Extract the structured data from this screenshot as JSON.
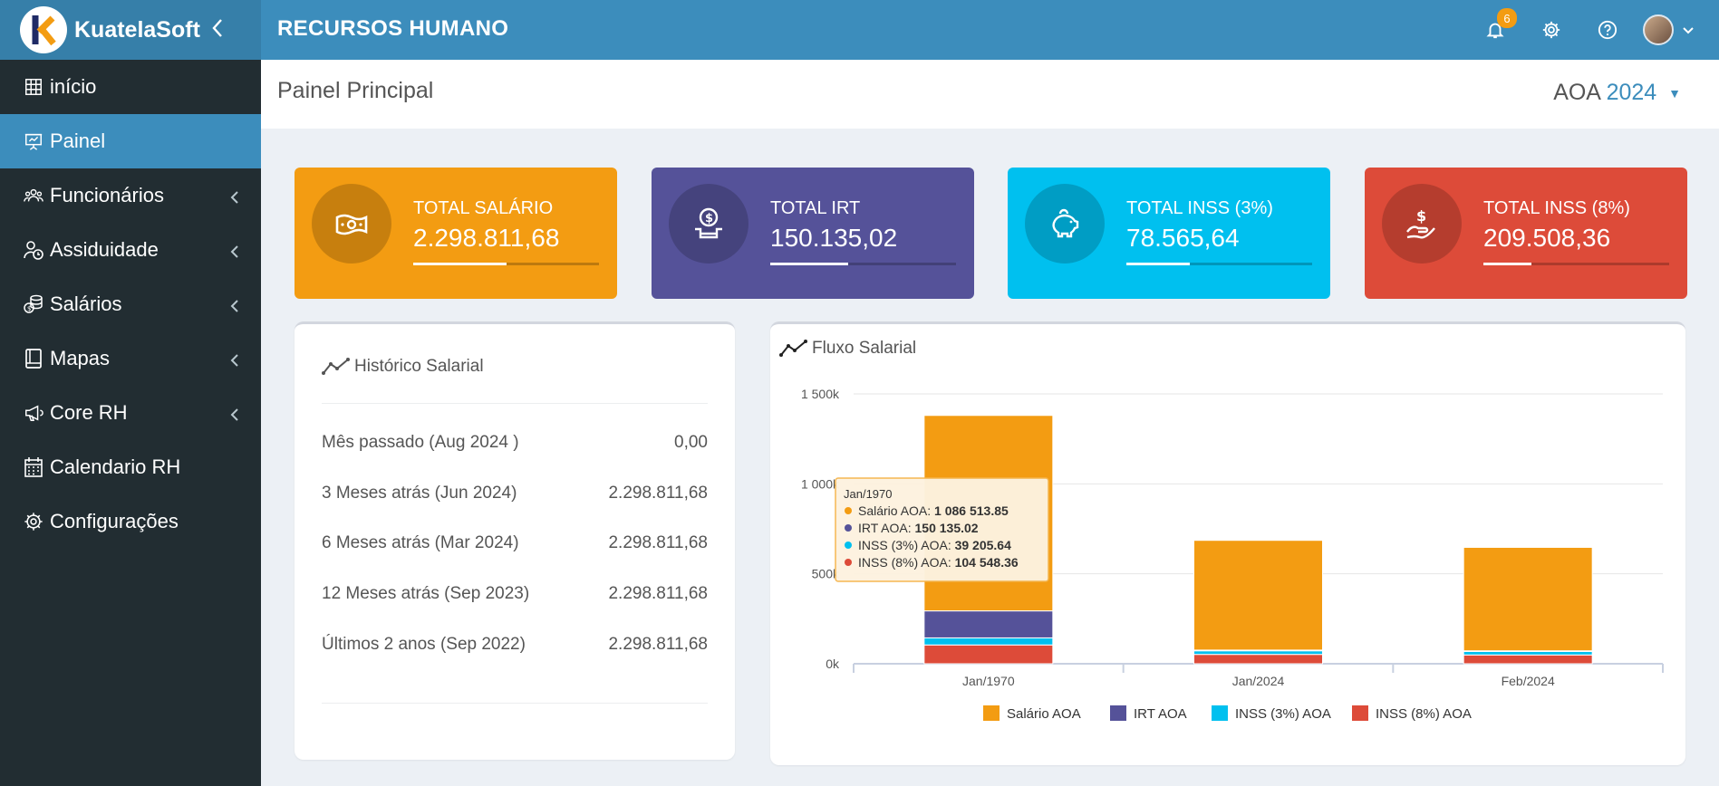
{
  "brand": {
    "name": "KuatelaSoft",
    "logo_letter": "K"
  },
  "header": {
    "app_title": "RECURSOS HUMANO",
    "notifications_count": "6"
  },
  "sidebar": {
    "items": [
      {
        "label": "início",
        "icon": "grid-icon",
        "active": false,
        "expandable": false
      },
      {
        "label": "Painel",
        "icon": "presentation-icon",
        "active": true,
        "expandable": false
      },
      {
        "label": "Funcionários",
        "icon": "users-icon",
        "active": false,
        "expandable": true
      },
      {
        "label": "Assiduidade",
        "icon": "user-clock-icon",
        "active": false,
        "expandable": true
      },
      {
        "label": "Salários",
        "icon": "coins-icon",
        "active": false,
        "expandable": true
      },
      {
        "label": "Mapas",
        "icon": "book-icon",
        "active": false,
        "expandable": true
      },
      {
        "label": "Core RH",
        "icon": "megaphone-icon",
        "active": false,
        "expandable": true
      },
      {
        "label": "Calendario RH",
        "icon": "calendar-icon",
        "active": false,
        "expandable": false
      },
      {
        "label": "Configurações",
        "icon": "gear-icon",
        "active": false,
        "expandable": false
      }
    ]
  },
  "page": {
    "title": "Painel Principal",
    "currency": "AOA",
    "year": "2024"
  },
  "stats": [
    {
      "label": "TOTAL SALÁRIO",
      "value": "2.298.811,68",
      "color": "#f39c12",
      "icon": "money-bill-icon",
      "progress": 0.5
    },
    {
      "label": "TOTAL IRT",
      "value": "150.135,02",
      "color": "#555299",
      "icon": "hand-coin-icon",
      "progress": 0.42
    },
    {
      "label": "TOTAL INSS (3%)",
      "value": "78.565,64",
      "color": "#00c0ef",
      "icon": "piggy-bank-icon",
      "progress": 0.34
    },
    {
      "label": "TOTAL INSS (8%)",
      "value": "209.508,36",
      "color": "#dd4b39",
      "icon": "hand-dollar-icon",
      "progress": 0.26
    }
  ],
  "history": {
    "title": "Histórico Salarial",
    "rows": [
      {
        "label": "Mês passado (Aug 2024 )",
        "value": "0,00"
      },
      {
        "label": "3 Meses atrás (Jun 2024)",
        "value": "2.298.811,68"
      },
      {
        "label": "6 Meses atrás (Mar 2024)",
        "value": "2.298.811,68"
      },
      {
        "label": "12 Meses atrás (Sep 2023)",
        "value": "2.298.811,68"
      },
      {
        "label": "Últimos 2 anos (Sep 2022)",
        "value": "2.298.811,68"
      }
    ]
  },
  "flow_panel": {
    "title": "Fluxo Salarial"
  },
  "chart_data": {
    "type": "bar",
    "stacked": true,
    "categories": [
      "Jan/1970",
      "Jan/2024",
      "Feb/2024"
    ],
    "series": [
      {
        "name": "Salário AOA",
        "color": "#f39c12",
        "values": [
          1086513.85,
          610000,
          575000
        ]
      },
      {
        "name": "IRT AOA",
        "color": "#555299",
        "values": [
          150135.02,
          4000,
          4000
        ]
      },
      {
        "name": "INSS (3%) AOA",
        "color": "#00c0ef",
        "values": [
          39205.64,
          20000,
          19000
        ]
      },
      {
        "name": "INSS (8%) AOA",
        "color": "#dd4b39",
        "values": [
          104548.36,
          52000,
          49000
        ]
      }
    ],
    "y_ticks": [
      "0k",
      "500k",
      "1 000k",
      "1 500k"
    ],
    "y_tick_values": [
      0,
      500000,
      1000000,
      1500000
    ],
    "ylim": [
      0,
      1500000
    ],
    "grid": true,
    "legend_position": "bottom",
    "tooltip": {
      "title": "Jan/1970",
      "rows": [
        {
          "name": "Salário AOA",
          "value": "1 086 513.85",
          "color": "#f39c12"
        },
        {
          "name": "IRT AOA",
          "value": "150 135.02",
          "color": "#555299"
        },
        {
          "name": "INSS (3%) AOA",
          "value": "39 205.64",
          "color": "#00c0ef"
        },
        {
          "name": "INSS (8%) AOA",
          "value": "104 548.36",
          "color": "#dd4b39"
        }
      ]
    }
  }
}
